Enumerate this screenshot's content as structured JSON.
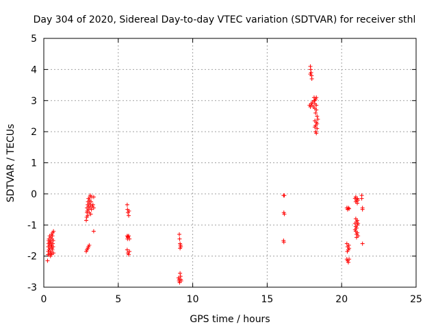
{
  "chart_data": {
    "type": "scatter",
    "title": "Day 304 of 2020, Sidereal Day-to-day VTEC variation (SDTVAR) for receiver sthl",
    "xlabel": "GPS time / hours",
    "ylabel": "SDTVAR / TECUs",
    "xlim": [
      0,
      25
    ],
    "ylim": [
      -3,
      5
    ],
    "x_ticks": [
      0,
      5,
      10,
      15,
      20,
      25
    ],
    "y_ticks": [
      -3,
      -2,
      -1,
      0,
      1,
      2,
      3,
      4,
      5
    ],
    "x_tick_labels": [
      "0",
      "5",
      "10",
      "15",
      "20",
      "25"
    ],
    "y_tick_labels": [
      "-3",
      "-2",
      "-1",
      "0",
      "1",
      "2",
      "3",
      "4",
      "5"
    ],
    "grid": true,
    "marker": "+",
    "color": "#ff0000",
    "series": [
      {
        "name": "SDTVAR",
        "points": [
          [
            0.25,
            -2.15
          ],
          [
            0.28,
            -1.95
          ],
          [
            0.3,
            -1.85
          ],
          [
            0.3,
            -1.7
          ],
          [
            0.32,
            -1.6
          ],
          [
            0.33,
            -1.5
          ],
          [
            0.35,
            -1.45
          ],
          [
            0.35,
            -1.8
          ],
          [
            0.37,
            -1.55
          ],
          [
            0.38,
            -1.65
          ],
          [
            0.4,
            -1.75
          ],
          [
            0.4,
            -1.35
          ],
          [
            0.42,
            -1.9
          ],
          [
            0.43,
            -1.5
          ],
          [
            0.45,
            -1.6
          ],
          [
            0.45,
            -1.85
          ],
          [
            0.47,
            -1.4
          ],
          [
            0.48,
            -1.7
          ],
          [
            0.5,
            -1.55
          ],
          [
            0.5,
            -1.95
          ],
          [
            0.52,
            -1.3
          ],
          [
            0.53,
            -1.65
          ],
          [
            0.55,
            -1.75
          ],
          [
            0.55,
            -1.45
          ],
          [
            0.57,
            -1.8
          ],
          [
            0.58,
            -1.35
          ],
          [
            0.6,
            -1.6
          ],
          [
            0.6,
            -1.25
          ],
          [
            0.62,
            -1.7
          ],
          [
            0.63,
            -1.5
          ],
          [
            0.65,
            -1.9
          ],
          [
            0.65,
            -1.2
          ],
          [
            0.35,
            -1.95
          ],
          [
            0.45,
            -2.0
          ],
          [
            0.55,
            -1.9
          ],
          [
            2.85,
            -1.85
          ],
          [
            2.9,
            -1.8
          ],
          [
            2.95,
            -1.75
          ],
          [
            3.0,
            -1.7
          ],
          [
            3.05,
            -1.65
          ],
          [
            2.85,
            -0.85
          ],
          [
            2.88,
            -0.75
          ],
          [
            2.9,
            -0.6
          ],
          [
            2.9,
            -0.45
          ],
          [
            2.92,
            -0.55
          ],
          [
            2.95,
            -0.35
          ],
          [
            2.95,
            -0.7
          ],
          [
            2.97,
            -0.25
          ],
          [
            3.0,
            -0.5
          ],
          [
            3.0,
            -0.15
          ],
          [
            3.02,
            -0.4
          ],
          [
            3.05,
            -0.3
          ],
          [
            3.05,
            -0.6
          ],
          [
            3.07,
            -0.2
          ],
          [
            3.1,
            -0.1
          ],
          [
            3.1,
            -0.45
          ],
          [
            3.12,
            -0.05
          ],
          [
            3.15,
            -0.35
          ],
          [
            3.15,
            -0.65
          ],
          [
            3.17,
            -0.25
          ],
          [
            3.2,
            -0.5
          ],
          [
            3.22,
            -0.1
          ],
          [
            3.25,
            -0.4
          ],
          [
            3.3,
            -0.35
          ],
          [
            3.35,
            -0.1
          ],
          [
            3.35,
            -0.45
          ],
          [
            3.35,
            -1.2
          ],
          [
            5.6,
            -0.35
          ],
          [
            5.62,
            -0.5
          ],
          [
            5.65,
            -0.6
          ],
          [
            5.7,
            -0.7
          ],
          [
            5.72,
            -0.55
          ],
          [
            5.6,
            -1.35
          ],
          [
            5.62,
            -1.45
          ],
          [
            5.65,
            -1.4
          ],
          [
            5.7,
            -1.35
          ],
          [
            5.75,
            -1.45
          ],
          [
            5.65,
            -1.38
          ],
          [
            5.6,
            -1.8
          ],
          [
            5.65,
            -1.9
          ],
          [
            5.7,
            -1.95
          ],
          [
            5.75,
            -1.85
          ],
          [
            9.1,
            -1.3
          ],
          [
            9.12,
            -1.45
          ],
          [
            9.15,
            -1.6
          ],
          [
            9.18,
            -1.65
          ],
          [
            9.2,
            -1.7
          ],
          [
            9.15,
            -1.75
          ],
          [
            9.05,
            -2.7
          ],
          [
            9.08,
            -2.8
          ],
          [
            9.1,
            -2.75
          ],
          [
            9.12,
            -2.85
          ],
          [
            9.15,
            -2.55
          ],
          [
            9.18,
            -2.65
          ],
          [
            9.2,
            -2.75
          ],
          [
            9.22,
            -2.8
          ],
          [
            16.1,
            -0.05
          ],
          [
            16.15,
            -0.05
          ],
          [
            16.12,
            -0.6
          ],
          [
            16.15,
            -0.65
          ],
          [
            16.1,
            -1.5
          ],
          [
            16.12,
            -1.55
          ],
          [
            17.9,
            4.1
          ],
          [
            17.92,
            4.0
          ],
          [
            17.95,
            3.9
          ],
          [
            17.98,
            3.8
          ],
          [
            18.0,
            3.7
          ],
          [
            17.9,
            3.85
          ],
          [
            17.85,
            2.85
          ],
          [
            17.9,
            2.8
          ],
          [
            17.95,
            2.9
          ],
          [
            18.0,
            2.85
          ],
          [
            18.05,
            2.95
          ],
          [
            18.1,
            2.8
          ],
          [
            18.15,
            3.0
          ],
          [
            18.2,
            2.9
          ],
          [
            18.25,
            3.05
          ],
          [
            18.3,
            2.85
          ],
          [
            18.15,
            3.1
          ],
          [
            18.2,
            2.75
          ],
          [
            18.25,
            2.6
          ],
          [
            18.3,
            2.7
          ],
          [
            18.35,
            2.5
          ],
          [
            18.2,
            2.35
          ],
          [
            18.25,
            2.2
          ],
          [
            18.3,
            2.3
          ],
          [
            18.35,
            2.1
          ],
          [
            18.2,
            2.15
          ],
          [
            18.25,
            2.0
          ],
          [
            18.35,
            2.25
          ],
          [
            18.4,
            2.4
          ],
          [
            18.3,
            1.95
          ],
          [
            18.2,
            3.0
          ],
          [
            18.3,
            3.1
          ],
          [
            20.35,
            -0.45
          ],
          [
            20.4,
            -0.5
          ],
          [
            20.45,
            -0.45
          ],
          [
            20.5,
            -0.48
          ],
          [
            20.35,
            -1.6
          ],
          [
            20.4,
            -1.7
          ],
          [
            20.45,
            -1.8
          ],
          [
            20.5,
            -1.75
          ],
          [
            20.38,
            -1.85
          ],
          [
            20.48,
            -1.65
          ],
          [
            20.35,
            -2.1
          ],
          [
            20.4,
            -2.15
          ],
          [
            20.45,
            -2.2
          ],
          [
            20.5,
            -2.1
          ],
          [
            20.9,
            -0.15
          ],
          [
            20.95,
            -0.25
          ],
          [
            21.0,
            -0.2
          ],
          [
            21.05,
            -0.15
          ],
          [
            21.1,
            -0.2
          ],
          [
            21.05,
            -0.3
          ],
          [
            20.95,
            -0.1
          ],
          [
            20.95,
            -0.8
          ],
          [
            21.0,
            -0.9
          ],
          [
            21.05,
            -1.0
          ],
          [
            21.0,
            -1.1
          ],
          [
            20.9,
            -0.95
          ],
          [
            20.95,
            -1.2
          ],
          [
            21.05,
            -1.25
          ],
          [
            21.0,
            -1.3
          ],
          [
            21.1,
            -1.35
          ],
          [
            20.95,
            -1.05
          ],
          [
            21.05,
            -0.85
          ],
          [
            21.1,
            -0.95
          ],
          [
            21.0,
            -1.4
          ],
          [
            20.9,
            -1.15
          ],
          [
            21.35,
            -0.05
          ],
          [
            21.35,
            -0.15
          ],
          [
            21.4,
            -0.45
          ],
          [
            21.4,
            -0.5
          ],
          [
            21.4,
            -1.6
          ]
        ]
      }
    ]
  }
}
